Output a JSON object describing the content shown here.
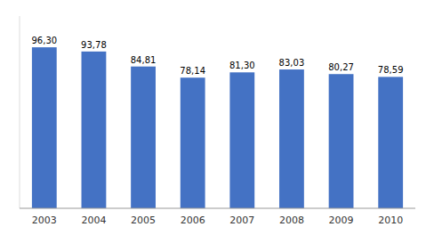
{
  "chart_data": {
    "type": "bar",
    "categories": [
      "2003",
      "2004",
      "2005",
      "2006",
      "2007",
      "2008",
      "2009",
      "2010"
    ],
    "values": [
      96.3,
      93.78,
      84.81,
      78.14,
      81.3,
      83.03,
      80.27,
      78.59
    ],
    "value_labels": [
      "96,30",
      "93,78",
      "84,81",
      "78,14",
      "81,30",
      "83,03",
      "80,27",
      "78,59"
    ],
    "color": "#4472C4",
    "ylim": [
      0,
      115
    ],
    "data_labels": true,
    "tick_labels": "x"
  }
}
